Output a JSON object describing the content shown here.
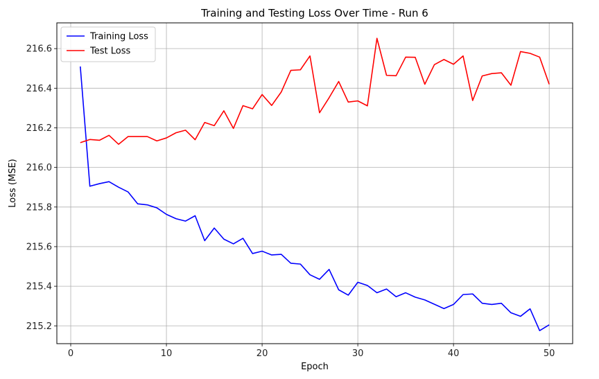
{
  "chart_data": {
    "type": "line",
    "title": "Training and Testing Loss Over Time - Run 6",
    "xlabel": "Epoch",
    "ylabel": "Loss (MSE)",
    "xlim": [
      -1.45,
      52.45
    ],
    "ylim": [
      215.11,
      216.73
    ],
    "xticks": [
      0,
      10,
      20,
      30,
      40,
      50
    ],
    "yticks": [
      215.2,
      215.4,
      215.6,
      215.8,
      216.0,
      216.2,
      216.4,
      216.6
    ],
    "grid": true,
    "legend_position": "top-left",
    "x": [
      1,
      2,
      3,
      4,
      5,
      6,
      7,
      8,
      9,
      10,
      11,
      12,
      13,
      14,
      15,
      16,
      17,
      18,
      19,
      20,
      21,
      22,
      23,
      24,
      25,
      26,
      27,
      28,
      29,
      30,
      31,
      32,
      33,
      34,
      35,
      36,
      37,
      38,
      39,
      40,
      41,
      42,
      43,
      44,
      45,
      46,
      47,
      48,
      49,
      50
    ],
    "series": [
      {
        "name": "Training Loss",
        "color": "#0000ff",
        "values": [
          216.51,
          215.905,
          215.918,
          215.928,
          215.9,
          215.876,
          215.816,
          215.811,
          215.796,
          215.763,
          215.741,
          215.729,
          215.756,
          215.63,
          215.694,
          215.638,
          215.614,
          215.642,
          215.565,
          215.577,
          215.558,
          215.561,
          215.516,
          215.512,
          215.458,
          215.435,
          215.485,
          215.382,
          215.355,
          215.42,
          215.404,
          215.367,
          215.386,
          215.347,
          215.367,
          215.345,
          215.331,
          215.309,
          215.287,
          215.308,
          215.358,
          215.361,
          215.314,
          215.308,
          215.314,
          215.266,
          215.248,
          215.286,
          215.176,
          215.205
        ]
      },
      {
        "name": "Test Loss",
        "color": "#ff0000",
        "values": [
          216.125,
          216.141,
          216.137,
          216.162,
          216.117,
          216.156,
          216.156,
          216.156,
          216.134,
          216.149,
          216.175,
          216.188,
          216.14,
          216.227,
          216.211,
          216.286,
          216.197,
          216.312,
          216.296,
          216.368,
          216.313,
          216.381,
          216.49,
          216.493,
          216.563,
          216.276,
          216.352,
          216.434,
          216.33,
          216.336,
          216.311,
          216.652,
          216.465,
          216.463,
          216.557,
          216.556,
          216.42,
          216.519,
          216.545,
          216.521,
          216.563,
          216.338,
          216.462,
          216.474,
          216.478,
          216.415,
          216.585,
          216.576,
          216.557,
          216.42
        ]
      }
    ]
  }
}
